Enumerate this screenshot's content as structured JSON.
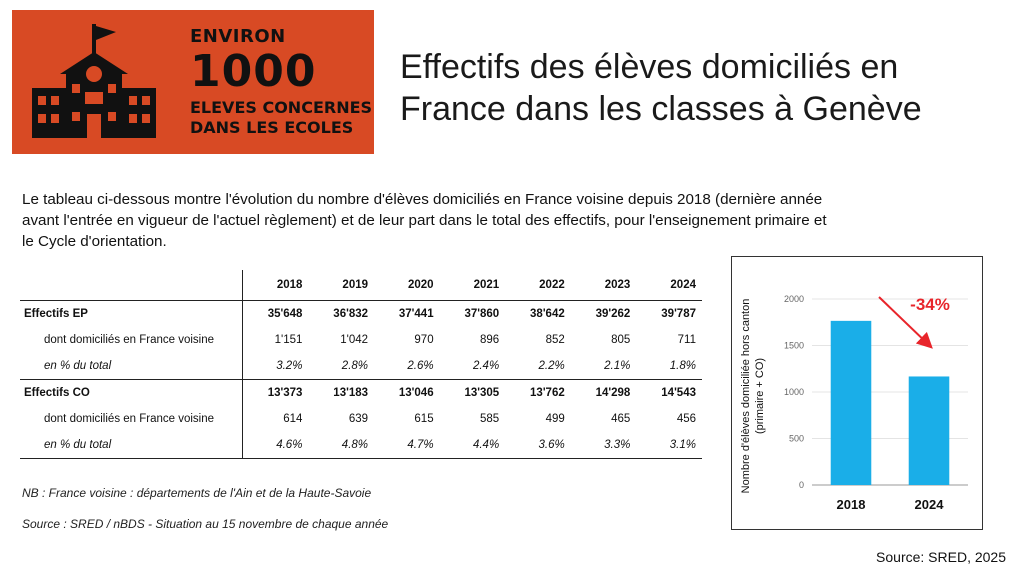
{
  "banner": {
    "line1": "ENVIRON",
    "line2": "1000",
    "line3": "ELEVES CONCERNES",
    "line4": "DANS LES ECOLES",
    "icon": "school-building-icon",
    "bg_color": "#d84a24"
  },
  "title": {
    "line1": "Effectifs des élèves domiciliés en",
    "line2": "France dans les classes à Genève"
  },
  "intro": "Le tableau ci-dessous montre l'évolution du nombre d'élèves domiciliés en France voisine depuis 2018 (dernière année avant l'entrée en vigueur de l'actuel règlement) et de leur part dans le total des effectifs, pour l'enseignement primaire et le Cycle d'orientation.",
  "table": {
    "years": [
      "2018",
      "2019",
      "2020",
      "2021",
      "2022",
      "2023",
      "2024"
    ],
    "rows": [
      {
        "label": "Effectifs EP",
        "values": [
          "35'648",
          "36'832",
          "37'441",
          "37'860",
          "38'642",
          "39'262",
          "39'787"
        ]
      },
      {
        "label": "dont domiciliés en France voisine",
        "values": [
          "1'151",
          "1'042",
          "970",
          "896",
          "852",
          "805",
          "711"
        ]
      },
      {
        "label": "en % du total",
        "values": [
          "3.2%",
          "2.8%",
          "2.6%",
          "2.4%",
          "2.2%",
          "2.1%",
          "1.8%"
        ]
      },
      {
        "label": "Effectifs CO",
        "values": [
          "13'373",
          "13'183",
          "13'046",
          "13'305",
          "13'762",
          "14'298",
          "14'543"
        ]
      },
      {
        "label": "dont domiciliés en France voisine",
        "values": [
          "614",
          "639",
          "615",
          "585",
          "499",
          "465",
          "456"
        ]
      },
      {
        "label": "en % du total",
        "values": [
          "4.6%",
          "4.8%",
          "4.7%",
          "4.4%",
          "3.6%",
          "3.3%",
          "3.1%"
        ]
      }
    ]
  },
  "notes": {
    "nb": "NB : France voisine : départements de l'Ain et de la Haute-Savoie",
    "source": "Source : SRED / nBDS - Situation au 15 novembre de chaque année"
  },
  "chart_data": {
    "type": "bar",
    "categories": [
      "2018",
      "2024"
    ],
    "values": [
      1765,
      1167
    ],
    "ylabel_line1": "Nombre d'élèves domiciliée hors canton",
    "ylabel_line2": "(primaire + CO)",
    "ylim": [
      0,
      2000
    ],
    "yticks": [
      0,
      500,
      1000,
      1500,
      2000
    ],
    "annotation": "-34%",
    "bar_color": "#1aaee8",
    "annotation_color": "#e8252b"
  },
  "footer_source": "Source: SRED, 2025"
}
